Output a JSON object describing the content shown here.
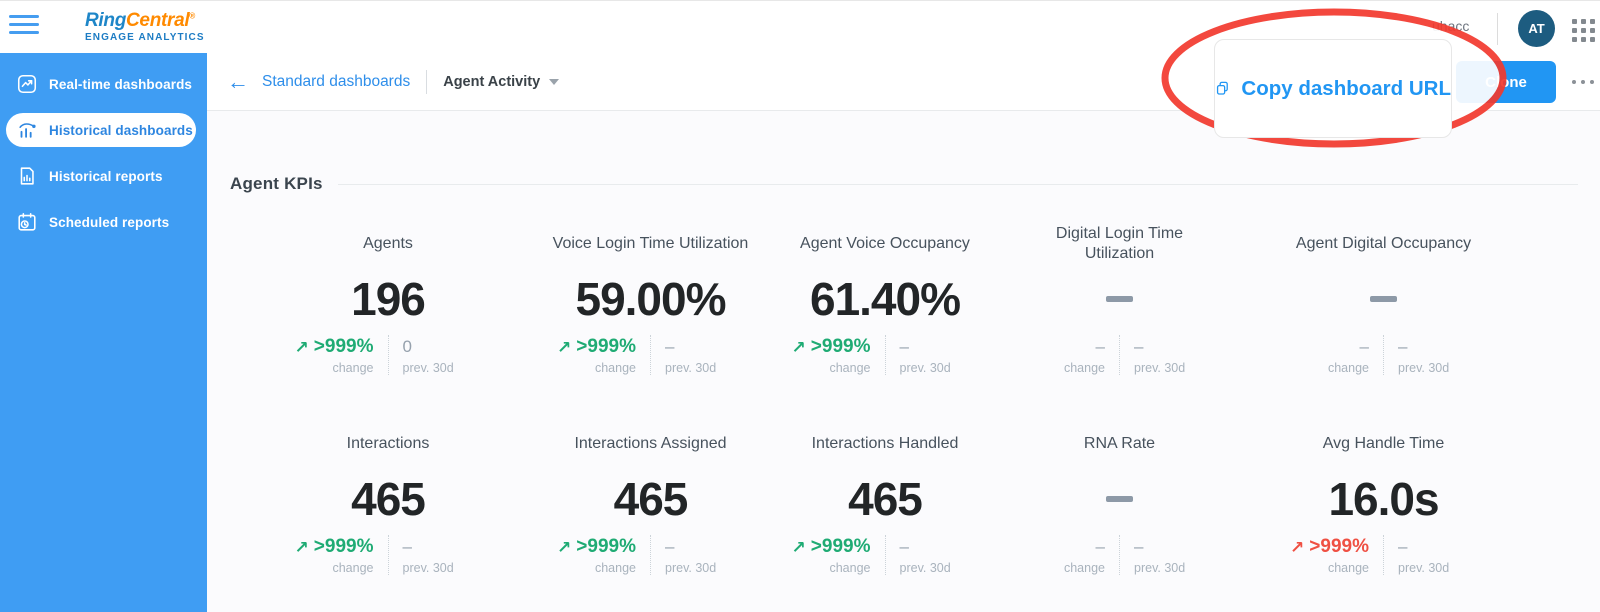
{
  "header": {
    "brand": {
      "name_part1": "Ring",
      "name_part2": "Central",
      "registered_mark": "®",
      "subtitle": "ENGAGE ANALYTICS"
    },
    "account_text": "uhacc",
    "avatar_initials": "AT"
  },
  "sidebar": {
    "items": [
      {
        "label": "Real-time dashboards",
        "icon": "realtime-dashboards-icon",
        "active": false
      },
      {
        "label": "Historical dashboards",
        "icon": "historical-dashboards-icon",
        "active": true
      },
      {
        "label": "Historical reports",
        "icon": "historical-reports-icon",
        "active": false
      },
      {
        "label": "Scheduled reports",
        "icon": "scheduled-reports-icon",
        "active": false
      }
    ]
  },
  "toolbar": {
    "back_label": "Standard dashboards",
    "dashboard_selector": "Agent Activity",
    "clone_button_label": "Clone",
    "copy_dashboard_label": "Copy dashboard URL"
  },
  "annotation": {
    "shape": "ellipse",
    "color": "#f2392e",
    "note": "red oval highlighting Copy dashboard URL"
  },
  "section_title": "Agent KPIs",
  "colors": {
    "sidebar_blue": "#3f9df3",
    "accent_blue": "#2196f3",
    "positive_green": "#1fab74",
    "negative_red": "#ef5043",
    "avatar_bg": "#1d5c80"
  },
  "kpi_rows": [
    [
      {
        "label": "Agents",
        "value": "196",
        "no_data": false,
        "change": {
          "value": ">999%",
          "direction": "up",
          "tone": "positive",
          "caption": "change"
        },
        "previous": {
          "value": "0",
          "caption": "prev. 30d"
        }
      },
      {
        "label": "Voice Login Time Utilization",
        "value": "59.00%",
        "no_data": false,
        "change": {
          "value": ">999%",
          "direction": "up",
          "tone": "positive",
          "caption": "change"
        },
        "previous": {
          "value": "–",
          "caption": "prev. 30d"
        }
      },
      {
        "label": "Agent Voice Occupancy",
        "value": "61.40%",
        "no_data": false,
        "change": {
          "value": ">999%",
          "direction": "up",
          "tone": "positive",
          "caption": "change"
        },
        "previous": {
          "value": "–",
          "caption": "prev. 30d"
        }
      },
      {
        "label": "Digital Login Time Utilization",
        "value": "",
        "no_data": true,
        "change": {
          "value": "–",
          "direction": "none",
          "tone": "none",
          "caption": "change"
        },
        "previous": {
          "value": "–",
          "caption": "prev. 30d"
        }
      },
      {
        "label": "Agent Digital Occupancy",
        "value": "",
        "no_data": true,
        "change": {
          "value": "–",
          "direction": "none",
          "tone": "none",
          "caption": "change"
        },
        "previous": {
          "value": "–",
          "caption": "prev. 30d"
        }
      }
    ],
    [
      {
        "label": "Interactions",
        "value": "465",
        "no_data": false,
        "change": {
          "value": ">999%",
          "direction": "up",
          "tone": "positive",
          "caption": "change"
        },
        "previous": {
          "value": "–",
          "caption": "prev. 30d"
        }
      },
      {
        "label": "Interactions Assigned",
        "value": "465",
        "no_data": false,
        "change": {
          "value": ">999%",
          "direction": "up",
          "tone": "positive",
          "caption": "change"
        },
        "previous": {
          "value": "–",
          "caption": "prev. 30d"
        }
      },
      {
        "label": "Interactions Handled",
        "value": "465",
        "no_data": false,
        "change": {
          "value": ">999%",
          "direction": "up",
          "tone": "positive",
          "caption": "change"
        },
        "previous": {
          "value": "–",
          "caption": "prev. 30d"
        }
      },
      {
        "label": "RNA Rate",
        "value": "",
        "no_data": true,
        "change": {
          "value": "–",
          "direction": "none",
          "tone": "none",
          "caption": "change"
        },
        "previous": {
          "value": "–",
          "caption": "prev. 30d"
        }
      },
      {
        "label": "Avg Handle Time",
        "value": "16.0s",
        "no_data": false,
        "change": {
          "value": ">999%",
          "direction": "up",
          "tone": "negative",
          "caption": "change"
        },
        "previous": {
          "value": "–",
          "caption": "prev. 30d"
        }
      }
    ]
  ]
}
